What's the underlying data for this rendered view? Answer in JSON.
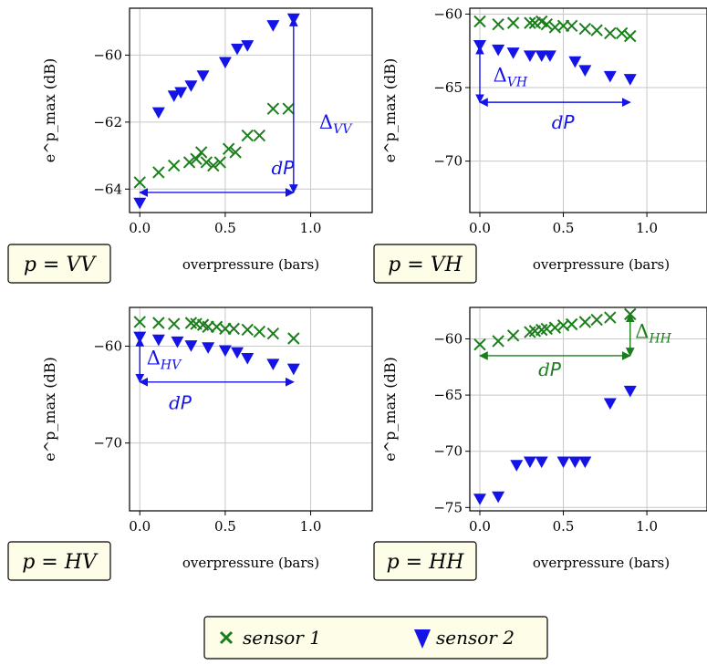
{
  "colors": {
    "sensor1": "#1a7f1a",
    "sensor2": "#1414e6",
    "grid": "#c8c8c8",
    "polar_box_fill": "#fdfde8"
  },
  "legend": {
    "sensor1": "sensor 1",
    "sensor2": "sensor 2",
    "placement": "bottom-center"
  },
  "chart_data": [
    {
      "type": "scatter",
      "ylabel": "e^p_max (dB)",
      "xlabel": "overpressure (bars)",
      "polarization_label": "p = VV",
      "xlim": [
        -0.06,
        1.36
      ],
      "ylim": [
        -64.7,
        -58.6
      ],
      "xticks": [
        0.0,
        0.5,
        1.0
      ],
      "yticks": [
        -64,
        -62,
        -60
      ],
      "grid": true,
      "series": [
        {
          "name": "sensor 1",
          "marker": "x",
          "x": [
            0.0,
            0.11,
            0.2,
            0.29,
            0.33,
            0.36,
            0.39,
            0.43,
            0.47,
            0.52,
            0.56,
            0.63,
            0.7,
            0.78,
            0.87
          ],
          "y": [
            -63.8,
            -63.5,
            -63.3,
            -63.2,
            -63.1,
            -62.9,
            -63.2,
            -63.3,
            -63.2,
            -62.8,
            -62.9,
            -62.4,
            -62.4,
            -61.6,
            -61.6
          ]
        },
        {
          "name": "sensor 2",
          "marker": "triangle-down",
          "x": [
            0.0,
            0.11,
            0.2,
            0.24,
            0.3,
            0.37,
            0.5,
            0.57,
            0.63,
            0.78,
            0.9
          ],
          "y": [
            -64.4,
            -61.7,
            -61.2,
            -61.1,
            -60.9,
            -60.6,
            -60.2,
            -59.8,
            -59.7,
            -59.1,
            -58.9
          ]
        }
      ],
      "annotations": [
        {
          "kind": "hline_arrow",
          "text": "dP",
          "color": "sensor2",
          "x": [
            0.0,
            0.9
          ],
          "y": -64.1,
          "label_at": [
            0.77,
            -63.55
          ]
        },
        {
          "kind": "vline_arrow",
          "text": "ΔVV",
          "color": "sensor2",
          "x": 0.9,
          "y": [
            -64.1,
            -58.9
          ],
          "label_at": [
            1.05,
            -62.2
          ]
        }
      ]
    },
    {
      "type": "scatter",
      "ylabel": "e^p_max (dB)",
      "xlabel": "overpressure (bars)",
      "polarization_label": "p = VH",
      "xlim": [
        -0.06,
        1.36
      ],
      "ylim": [
        -73.5,
        -59.6
      ],
      "xticks": [
        0.0,
        0.5,
        1.0
      ],
      "yticks": [
        -70,
        -65,
        -60
      ],
      "grid": true,
      "series": [
        {
          "name": "sensor 1",
          "marker": "x",
          "x": [
            0.0,
            0.11,
            0.2,
            0.3,
            0.33,
            0.37,
            0.4,
            0.45,
            0.5,
            0.55,
            0.63,
            0.7,
            0.78,
            0.85,
            0.9
          ],
          "y": [
            -60.5,
            -60.7,
            -60.6,
            -60.6,
            -60.6,
            -60.5,
            -60.7,
            -60.9,
            -60.8,
            -60.8,
            -61.0,
            -61.1,
            -61.3,
            -61.3,
            -61.5
          ]
        },
        {
          "name": "sensor 2",
          "marker": "triangle-down",
          "x": [
            0.0,
            0.11,
            0.2,
            0.3,
            0.37,
            0.42,
            0.57,
            0.63,
            0.78,
            0.9
          ],
          "y": [
            -62.1,
            -62.4,
            -62.6,
            -62.8,
            -62.8,
            -62.8,
            -63.2,
            -63.8,
            -64.2,
            -64.4
          ]
        }
      ],
      "annotations": [
        {
          "kind": "vline_arrow",
          "text": "ΔVH",
          "color": "sensor2",
          "x": 0.0,
          "y": [
            -62.2,
            -66.0
          ],
          "label_at": [
            0.08,
            -64.6
          ]
        },
        {
          "kind": "hline_arrow",
          "text": "dP",
          "color": "sensor2",
          "x": [
            0.0,
            0.9
          ],
          "y": -66.0,
          "label_at": [
            0.43,
            -67.8
          ]
        }
      ]
    },
    {
      "type": "scatter",
      "ylabel": "e^p_max (dB)",
      "xlabel": "overpressure (bars)",
      "polarization_label": "p = HV",
      "xlim": [
        -0.06,
        1.36
      ],
      "ylim": [
        -77.0,
        -56.0
      ],
      "xticks": [
        0.0,
        0.5,
        1.0
      ],
      "yticks": [
        -70,
        -60
      ],
      "grid": true,
      "series": [
        {
          "name": "sensor 1",
          "marker": "x",
          "x": [
            0.0,
            0.11,
            0.2,
            0.3,
            0.33,
            0.37,
            0.4,
            0.45,
            0.5,
            0.55,
            0.63,
            0.7,
            0.78,
            0.9
          ],
          "y": [
            -57.5,
            -57.6,
            -57.7,
            -57.6,
            -57.7,
            -57.8,
            -58.0,
            -58.0,
            -58.2,
            -58.2,
            -58.3,
            -58.5,
            -58.7,
            -59.2
          ]
        },
        {
          "name": "sensor 2",
          "marker": "triangle-down",
          "x": [
            0.0,
            0.11,
            0.22,
            0.3,
            0.4,
            0.5,
            0.57,
            0.63,
            0.78,
            0.9
          ],
          "y": [
            -59.0,
            -59.3,
            -59.5,
            -59.9,
            -60.1,
            -60.4,
            -60.6,
            -61.2,
            -61.8,
            -62.3
          ]
        }
      ],
      "annotations": [
        {
          "kind": "vline_arrow",
          "text": "ΔHV",
          "color": "sensor2",
          "x": 0.0,
          "y": [
            -59.2,
            -63.7
          ],
          "label_at": [
            0.04,
            -61.9
          ]
        },
        {
          "kind": "hline_arrow",
          "text": "dP",
          "color": "sensor2",
          "x": [
            0.0,
            0.9
          ],
          "y": -63.7,
          "label_at": [
            0.17,
            -66.5
          ]
        }
      ]
    },
    {
      "type": "scatter",
      "ylabel": "e^p_max (dB)",
      "xlabel": "overpressure (bars)",
      "polarization_label": "p = HH",
      "xlim": [
        -0.06,
        1.36
      ],
      "ylim": [
        -75.3,
        -57.2
      ],
      "xticks": [
        0.0,
        0.5,
        1.0
      ],
      "yticks": [
        -75,
        -70,
        -65,
        -60
      ],
      "grid": true,
      "series": [
        {
          "name": "sensor 1",
          "marker": "x",
          "x": [
            0.0,
            0.11,
            0.2,
            0.3,
            0.33,
            0.37,
            0.4,
            0.45,
            0.5,
            0.55,
            0.63,
            0.7,
            0.78,
            0.9
          ],
          "y": [
            -60.5,
            -60.2,
            -59.7,
            -59.4,
            -59.3,
            -59.2,
            -59.1,
            -59.0,
            -58.8,
            -58.7,
            -58.5,
            -58.3,
            -58.1,
            -57.8
          ]
        },
        {
          "name": "sensor 2",
          "marker": "triangle-down",
          "x": [
            0.0,
            0.11,
            0.22,
            0.3,
            0.37,
            0.5,
            0.57,
            0.63,
            0.78,
            0.9
          ],
          "y": [
            -74.2,
            -74.0,
            -71.2,
            -70.9,
            -70.9,
            -70.9,
            -70.9,
            -70.9,
            -65.7,
            -64.6
          ]
        }
      ],
      "annotations": [
        {
          "kind": "hline_arrow",
          "text": "dP",
          "color": "sensor1",
          "x": [
            0.0,
            0.9
          ],
          "y": -61.5,
          "label_at": [
            0.35,
            -63.3
          ]
        },
        {
          "kind": "vline_arrow",
          "text": "ΔHH",
          "color": "sensor1",
          "x": 0.9,
          "y": [
            -61.5,
            -57.8
          ],
          "label_at": [
            0.93,
            -59.9
          ]
        }
      ]
    }
  ]
}
